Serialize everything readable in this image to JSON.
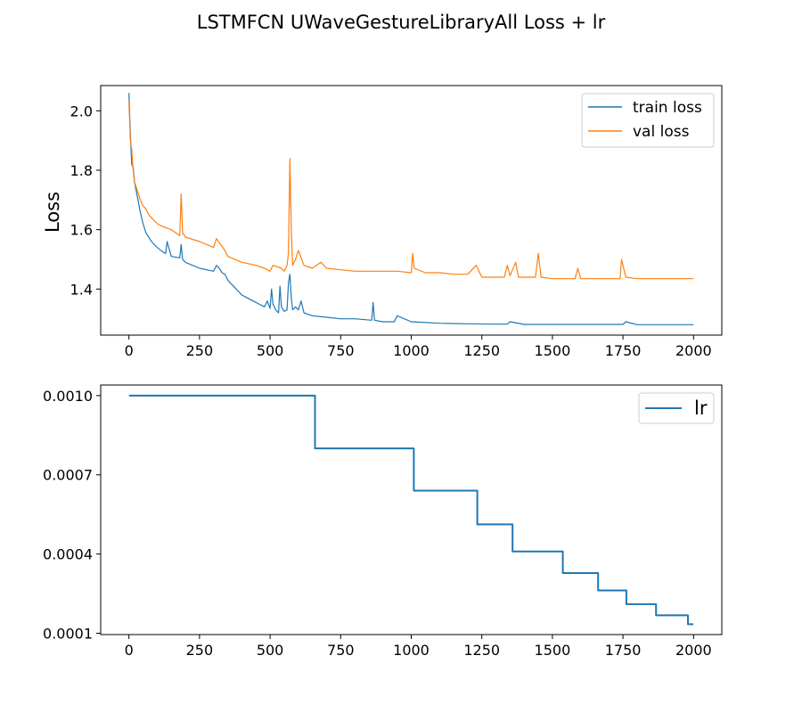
{
  "figure": {
    "title": "LSTMFCN UWaveGestureLibraryAll Loss + lr"
  },
  "chart_data": [
    {
      "type": "line",
      "title": "",
      "xlabel": "",
      "ylabel": "Loss",
      "xlim": [
        -100,
        2100
      ],
      "ylim": [
        1.245,
        2.085
      ],
      "xticks": [
        0,
        250,
        500,
        750,
        1000,
        1250,
        1500,
        1750,
        2000
      ],
      "xtick_labels": [
        "0",
        "250",
        "500",
        "750",
        "1000",
        "1250",
        "1500",
        "1750",
        "2000"
      ],
      "yticks": [
        1.4,
        1.6,
        1.8,
        2.0
      ],
      "ytick_labels": [
        "1.4",
        "1.6",
        "1.8",
        "2.0"
      ],
      "grid": false,
      "legend_position": "top-right",
      "series": [
        {
          "name": "train loss",
          "color": "#1f77b4",
          "x": [
            0,
            5,
            10,
            15,
            20,
            30,
            40,
            50,
            60,
            80,
            100,
            120,
            130,
            135,
            150,
            180,
            185,
            190,
            200,
            250,
            300,
            310,
            320,
            330,
            340,
            345,
            350,
            360,
            380,
            400,
            420,
            440,
            460,
            480,
            490,
            500,
            505,
            510,
            520,
            530,
            535,
            540,
            550,
            560,
            565,
            570,
            575,
            580,
            590,
            600,
            610,
            620,
            650,
            700,
            750,
            800,
            860,
            865,
            870,
            900,
            940,
            950,
            1000,
            1100,
            1200,
            1300,
            1340,
            1350,
            1400,
            1500,
            1600,
            1700,
            1750,
            1760,
            1800,
            1900,
            2000
          ],
          "values": [
            2.06,
            1.92,
            1.82,
            1.81,
            1.76,
            1.71,
            1.66,
            1.62,
            1.59,
            1.56,
            1.54,
            1.525,
            1.52,
            1.56,
            1.51,
            1.505,
            1.55,
            1.5,
            1.49,
            1.47,
            1.46,
            1.48,
            1.47,
            1.455,
            1.45,
            1.44,
            1.43,
            1.42,
            1.4,
            1.38,
            1.37,
            1.36,
            1.35,
            1.34,
            1.36,
            1.335,
            1.4,
            1.35,
            1.33,
            1.32,
            1.41,
            1.34,
            1.325,
            1.33,
            1.42,
            1.45,
            1.37,
            1.33,
            1.34,
            1.33,
            1.36,
            1.32,
            1.31,
            1.305,
            1.3,
            1.3,
            1.295,
            1.355,
            1.295,
            1.29,
            1.29,
            1.31,
            1.29,
            1.285,
            1.283,
            1.282,
            1.282,
            1.29,
            1.281,
            1.281,
            1.281,
            1.281,
            1.281,
            1.29,
            1.28,
            1.28,
            1.28
          ]
        },
        {
          "name": "val loss",
          "color": "#ff7f0e",
          "x": [
            0,
            5,
            10,
            15,
            20,
            30,
            40,
            50,
            60,
            70,
            80,
            100,
            120,
            150,
            180,
            185,
            190,
            200,
            250,
            300,
            310,
            340,
            350,
            400,
            450,
            480,
            500,
            510,
            540,
            550,
            560,
            565,
            570,
            575,
            580,
            590,
            600,
            620,
            650,
            680,
            700,
            750,
            800,
            850,
            900,
            950,
            1000,
            1005,
            1010,
            1050,
            1100,
            1150,
            1200,
            1230,
            1250,
            1300,
            1330,
            1340,
            1350,
            1370,
            1380,
            1400,
            1440,
            1450,
            1460,
            1500,
            1580,
            1590,
            1600,
            1700,
            1740,
            1745,
            1760,
            1800,
            1900,
            2000
          ],
          "values": [
            2.03,
            1.9,
            1.87,
            1.8,
            1.76,
            1.73,
            1.7,
            1.68,
            1.67,
            1.65,
            1.64,
            1.62,
            1.61,
            1.6,
            1.58,
            1.72,
            1.59,
            1.575,
            1.56,
            1.54,
            1.57,
            1.53,
            1.51,
            1.49,
            1.48,
            1.47,
            1.46,
            1.48,
            1.47,
            1.46,
            1.48,
            1.52,
            1.84,
            1.6,
            1.48,
            1.5,
            1.53,
            1.48,
            1.47,
            1.49,
            1.47,
            1.465,
            1.46,
            1.46,
            1.46,
            1.46,
            1.455,
            1.52,
            1.47,
            1.455,
            1.455,
            1.45,
            1.45,
            1.48,
            1.44,
            1.44,
            1.44,
            1.48,
            1.445,
            1.49,
            1.44,
            1.44,
            1.44,
            1.52,
            1.44,
            1.435,
            1.435,
            1.47,
            1.435,
            1.435,
            1.435,
            1.5,
            1.44,
            1.435,
            1.435,
            1.435
          ]
        }
      ]
    },
    {
      "type": "line",
      "title": "",
      "xlabel": "",
      "ylabel": "",
      "xlim": [
        -100,
        2100
      ],
      "ylim": [
        9.5e-05,
        0.00104
      ],
      "xticks": [
        0,
        250,
        500,
        750,
        1000,
        1250,
        1500,
        1750,
        2000
      ],
      "xtick_labels": [
        "0",
        "250",
        "500",
        "750",
        "1000",
        "1250",
        "1500",
        "1750",
        "2000"
      ],
      "yticks": [
        0.0001,
        0.0004,
        0.0007,
        0.001
      ],
      "ytick_labels": [
        "0.0001",
        "0.0004",
        "0.0007",
        "0.0010"
      ],
      "grid": false,
      "legend_position": "top-right",
      "step": "post",
      "series": [
        {
          "name": "lr",
          "color": "#1f77b4",
          "x": [
            0,
            659,
            1009,
            1234,
            1359,
            1537,
            1662,
            1762,
            1867,
            1980,
            1999
          ],
          "values": [
            0.001,
            0.0008,
            0.00064,
            0.000512,
            0.00041,
            0.000328,
            0.000262,
            0.00021,
            0.000168,
            0.000134,
            0.000134
          ]
        }
      ]
    }
  ]
}
